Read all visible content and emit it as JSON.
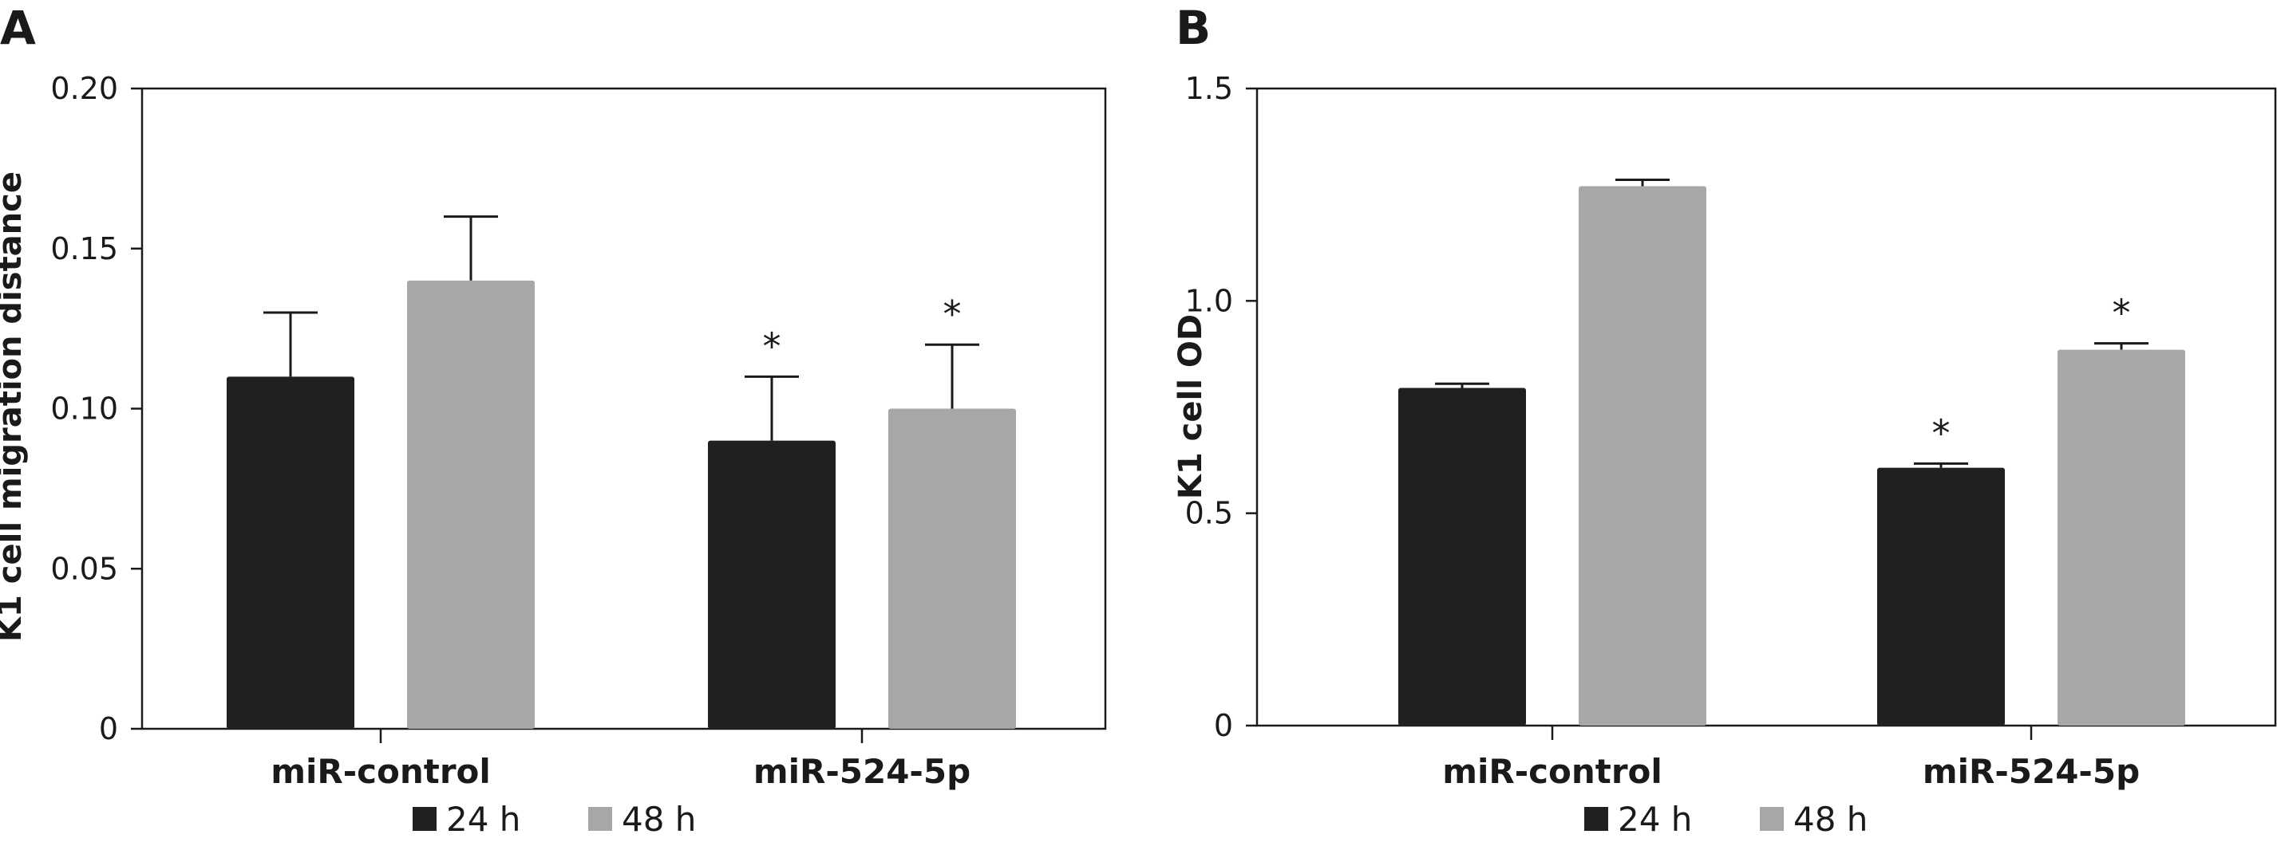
{
  "colors": {
    "series_24h": "#202020",
    "series_48h": "#a7a7a7",
    "axis": "#1a1a1a",
    "text": "#1a1a1a"
  },
  "chart_data": [
    {
      "type": "bar",
      "panel_label": "A",
      "title": "",
      "xlabel": "",
      "ylabel": "K1 cell migration distance",
      "ylim": [
        0,
        0.2
      ],
      "yticks": [
        "0",
        "0.05",
        "0.10",
        "0.15",
        "0.20"
      ],
      "ytick_values": [
        0,
        0.05,
        0.1,
        0.15,
        0.2
      ],
      "categories": [
        "miR-control",
        "miR-524-5p"
      ],
      "grid": false,
      "legend_position": "bottom-center",
      "series": [
        {
          "name": "24 h",
          "values": [
            0.11,
            0.09
          ],
          "errors": [
            0.02,
            0.02
          ],
          "significance": [
            "",
            "*"
          ]
        },
        {
          "name": "48 h",
          "values": [
            0.14,
            0.1
          ],
          "errors": [
            0.02,
            0.02
          ],
          "significance": [
            "",
            "*"
          ]
        }
      ]
    },
    {
      "type": "bar",
      "panel_label": "B",
      "title": "",
      "xlabel": "",
      "ylabel": "K1 cell OD",
      "ylim": [
        0,
        1.5
      ],
      "yticks": [
        "0",
        "0.5",
        "1.0",
        "1.5"
      ],
      "ytick_values": [
        0,
        0.5,
        1.0,
        1.5
      ],
      "categories": [
        "miR-control",
        "miR-524-5p"
      ],
      "grid": false,
      "legend_position": "bottom-center",
      "series": [
        {
          "name": "24 h",
          "values": [
            0.795,
            0.607
          ],
          "errors": [
            0.01,
            0.01
          ],
          "significance": [
            "",
            "*"
          ]
        },
        {
          "name": "48 h",
          "values": [
            1.27,
            0.885
          ],
          "errors": [
            0.015,
            0.015
          ],
          "significance": [
            "",
            "*"
          ]
        }
      ]
    }
  ]
}
